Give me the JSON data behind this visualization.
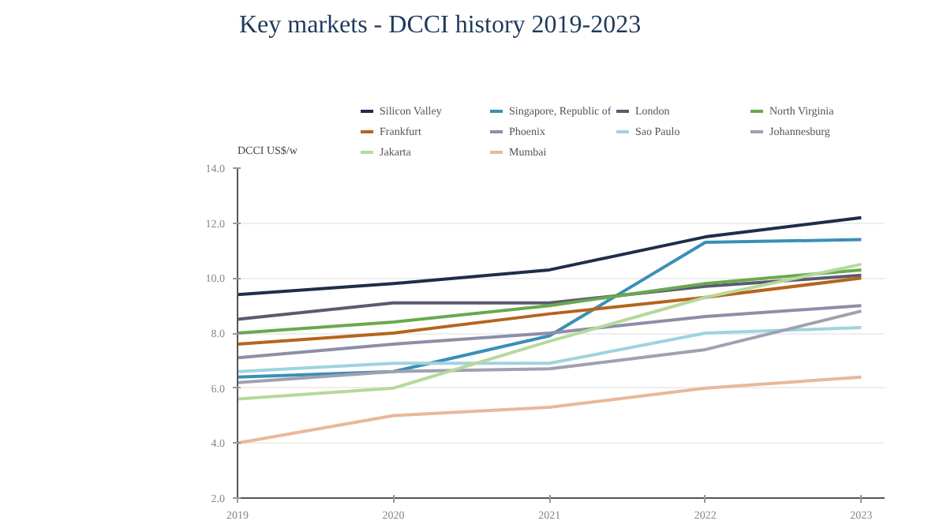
{
  "chart_data": {
    "type": "line",
    "title": "Key markets - DCCI history 2019-2023",
    "ylabel": "DCCI US$/w",
    "x": [
      2019,
      2020,
      2021,
      2022,
      2023
    ],
    "xlim": [
      2019,
      2023.15
    ],
    "xticks": [
      2019,
      2020,
      2021,
      2022,
      2023
    ],
    "ylim": [
      2.0,
      14.0
    ],
    "yticks": [
      {
        "value": 2,
        "label": "2.0"
      },
      {
        "value": 4,
        "label": "4.0"
      },
      {
        "value": 6,
        "label": "6.0"
      },
      {
        "value": 8,
        "label": "8.0"
      },
      {
        "value": 10,
        "label": "10.0"
      },
      {
        "value": 12,
        "label": "12.0"
      },
      {
        "value": 14,
        "label": "14.0"
      }
    ],
    "grid": "y",
    "legend": "top",
    "marker": "none",
    "line_style": "solid",
    "series": [
      {
        "name": "Silicon Valley",
        "color": "#1f2d4a",
        "values": [
          9.4,
          9.8,
          10.3,
          11.5,
          12.2
        ]
      },
      {
        "name": "Singapore, Republic of",
        "color": "#3a8fb7",
        "values": [
          6.4,
          6.6,
          7.9,
          11.3,
          11.4
        ]
      },
      {
        "name": "London",
        "color": "#5b5a70",
        "values": [
          8.5,
          9.1,
          9.1,
          9.7,
          10.1
        ]
      },
      {
        "name": "North Virginia",
        "color": "#6aa84f",
        "values": [
          8.0,
          8.4,
          9.0,
          9.8,
          10.3
        ]
      },
      {
        "name": "Frankfurt",
        "color": "#b5651d",
        "values": [
          7.6,
          8.0,
          8.7,
          9.3,
          10.0
        ]
      },
      {
        "name": "Phoenix",
        "color": "#8e8ea8",
        "values": [
          7.1,
          7.6,
          8.0,
          8.6,
          9.0
        ]
      },
      {
        "name": "Sao Paulo",
        "color": "#9fd3e0",
        "values": [
          6.6,
          6.9,
          6.9,
          8.0,
          8.2
        ]
      },
      {
        "name": "Johannesburg",
        "color": "#a0a0b0",
        "values": [
          6.2,
          6.6,
          6.7,
          7.4,
          8.8
        ]
      },
      {
        "name": "Jakarta",
        "color": "#b5d99c",
        "values": [
          5.6,
          6.0,
          7.7,
          9.3,
          10.5
        ]
      },
      {
        "name": "Mumbai",
        "color": "#e8b89a",
        "values": [
          4.0,
          5.0,
          5.3,
          6.0,
          6.4
        ]
      }
    ]
  }
}
